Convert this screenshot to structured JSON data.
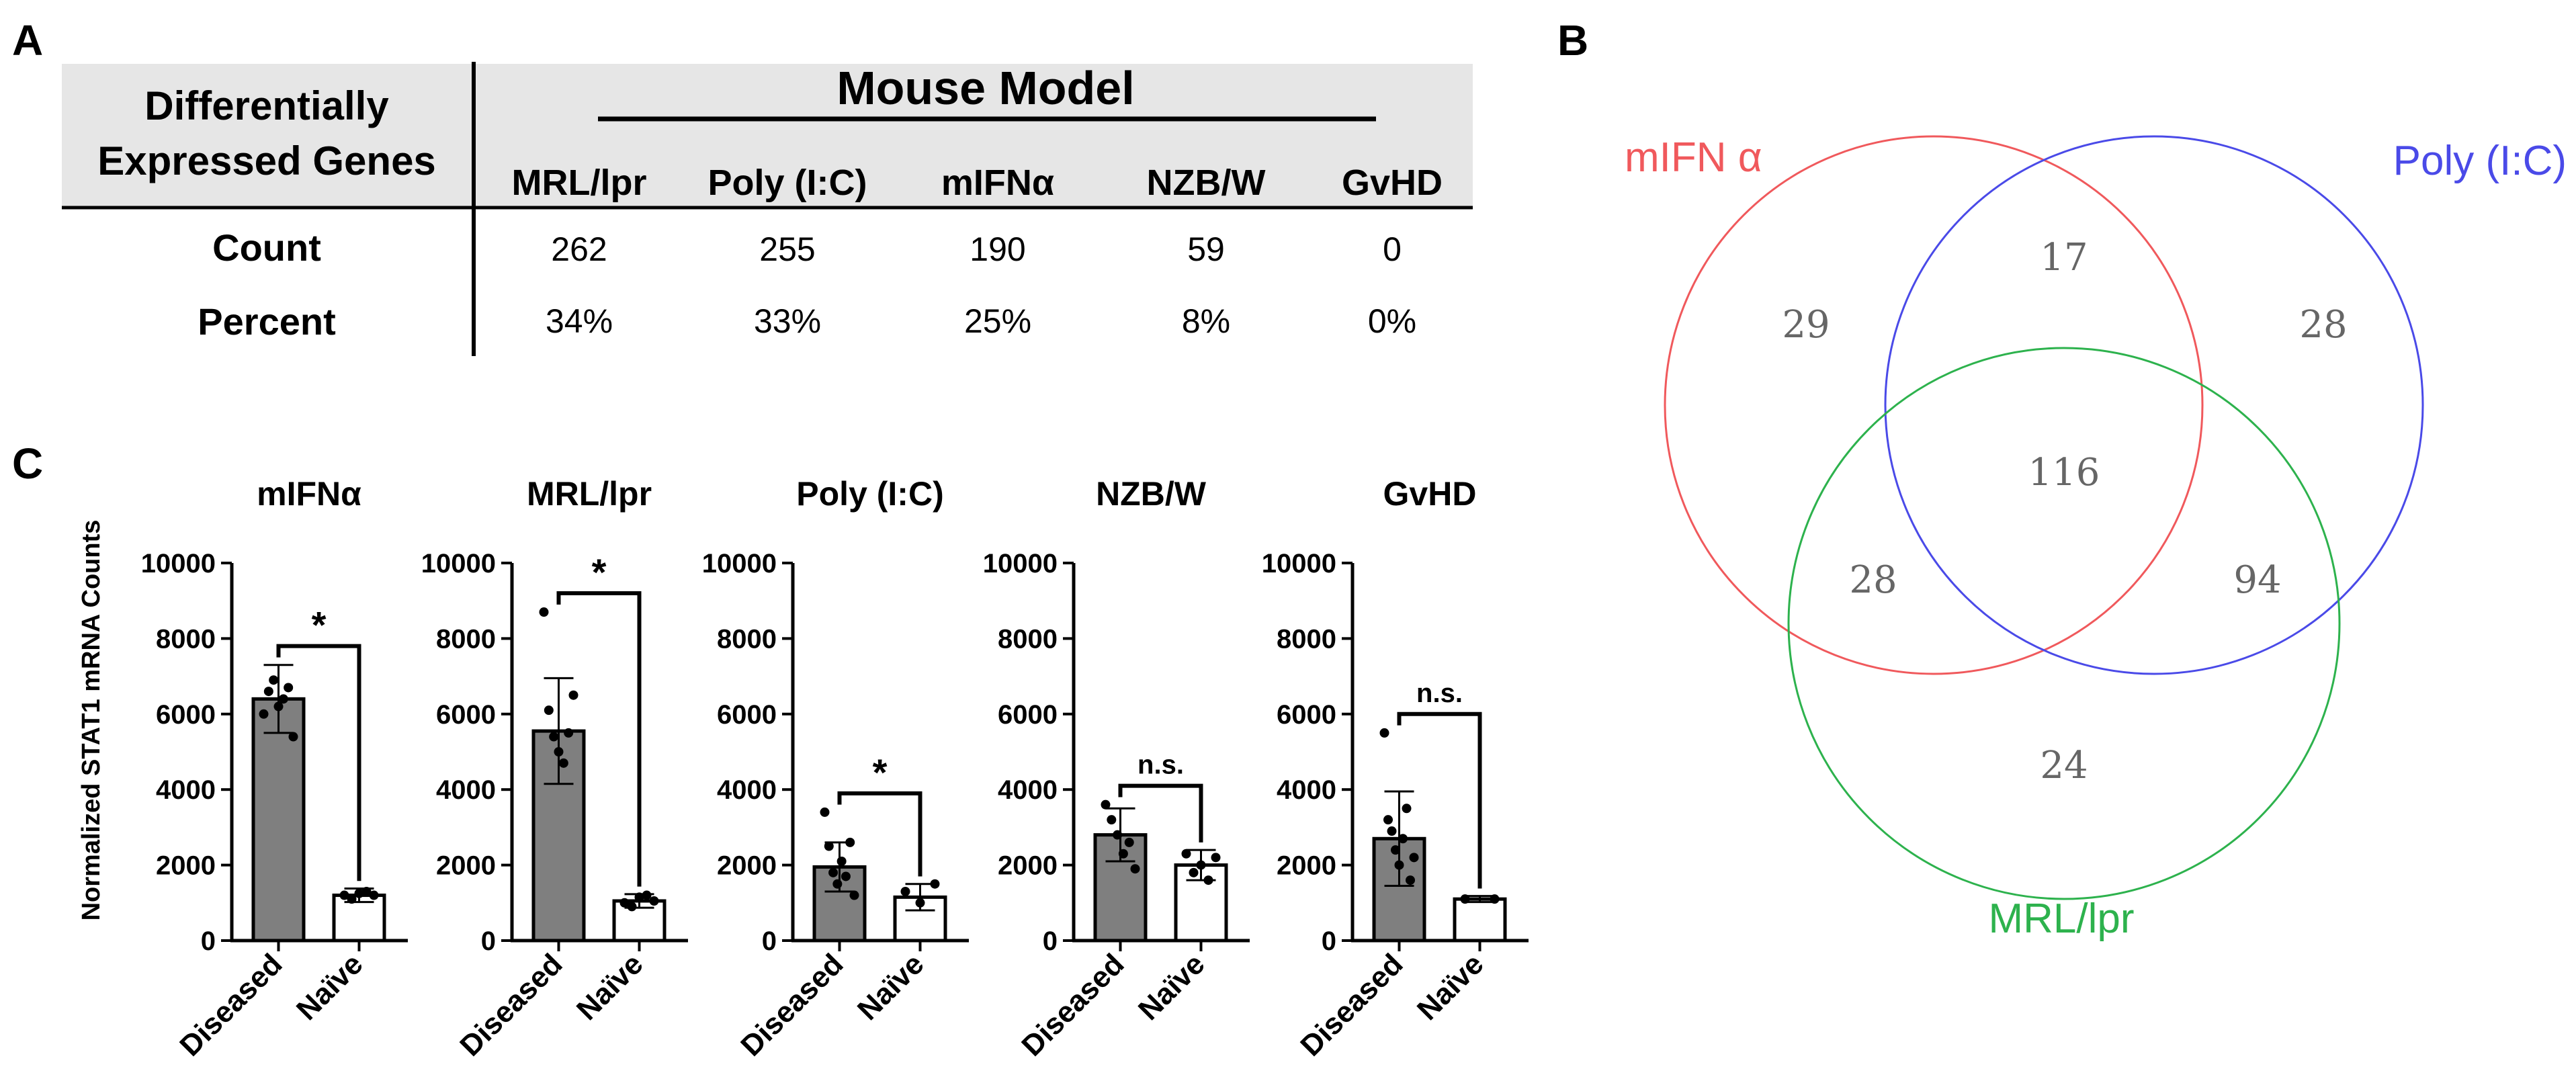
{
  "panel_labels": {
    "a": "A",
    "b": "B",
    "c": "C"
  },
  "table": {
    "row_header": [
      "Differentially",
      "Expressed Genes"
    ],
    "group_header": "Mouse Model",
    "columns": [
      "MRL/lpr",
      "Poly (I:C)",
      "mIFNα",
      "NZB/W",
      "GvHD"
    ],
    "rows": [
      {
        "label": "Count",
        "values": [
          "262",
          "255",
          "190",
          "59",
          "0"
        ]
      },
      {
        "label": "Percent",
        "values": [
          "34%",
          "33%",
          "25%",
          "8%",
          "0%"
        ]
      }
    ]
  },
  "venn": {
    "sets": [
      {
        "name": "mIFN α",
        "color": "#f0595c"
      },
      {
        "name": "Poly (I:C)",
        "color": "#4a4ae8"
      },
      {
        "name": "MRL/lpr",
        "color": "#2db24d"
      }
    ],
    "regions": {
      "mifna_only": "29",
      "poly_only": "28",
      "mrl_only": "24",
      "mifna_poly": "17",
      "mifna_mrl": "28",
      "poly_mrl": "94",
      "all": "116"
    },
    "number_color": "#666666"
  },
  "chart_data": {
    "type": "bar",
    "ylabel": "Normalized STAT1 mRNA Counts",
    "ylim": [
      0,
      10000
    ],
    "yticks": [
      "0",
      "2000",
      "4000",
      "6000",
      "8000",
      "10000"
    ],
    "categories": [
      "Diseased",
      "Naïve"
    ],
    "colors": {
      "diseased": "#7f7f7f",
      "naive": "#ffffff"
    },
    "panels": [
      {
        "title": "mIFNα",
        "values": [
          6400,
          1200
        ],
        "errors": [
          900,
          180
        ],
        "significance": "*",
        "points": [
          [
            6000,
            6600,
            6900,
            6200,
            6400,
            6700,
            5400
          ],
          [
            1200,
            1100,
            1250,
            1300,
            1200
          ]
        ]
      },
      {
        "title": "MRL/lpr",
        "values": [
          5550,
          1050
        ],
        "errors": [
          1400,
          180
        ],
        "significance": "*",
        "points": [
          [
            8700,
            6100,
            5400,
            5000,
            4700,
            5500,
            6500
          ],
          [
            1000,
            900,
            1150,
            1200,
            1050
          ]
        ]
      },
      {
        "title": "Poly (I:C)",
        "values": [
          1950,
          1150
        ],
        "errors": [
          650,
          350
        ],
        "significance": "*",
        "points": [
          [
            3400,
            2500,
            1800,
            1500,
            2100,
            1700,
            2600,
            1200
          ],
          [
            1300,
            1000,
            1500
          ]
        ]
      },
      {
        "title": "NZB/W",
        "values": [
          2800,
          2000
        ],
        "errors": [
          700,
          400
        ],
        "significance": "n.s.",
        "points": [
          [
            3600,
            3200,
            2800,
            2300,
            2600,
            1900
          ],
          [
            2300,
            1800,
            2000,
            1600,
            2200
          ]
        ]
      },
      {
        "title": "GvHD",
        "values": [
          2700,
          1100
        ],
        "errors": [
          1250,
          80
        ],
        "significance": "n.s.",
        "points": [
          [
            5500,
            3200,
            2900,
            2400,
            2000,
            2700,
            3500,
            1600,
            2200
          ],
          [
            1100,
            1100
          ]
        ]
      }
    ]
  }
}
